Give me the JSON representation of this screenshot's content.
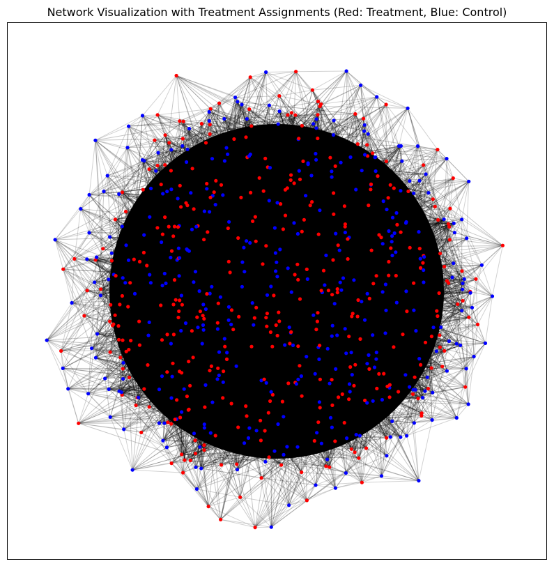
{
  "chart_data": {
    "type": "scatter",
    "subtype": "network-graph",
    "title": "Network Visualization with Treatment Assignments (Red: Treatment, Blue: Control)",
    "xlabel": "",
    "ylabel": "",
    "axes_ticks": false,
    "grid": false,
    "legend": "none",
    "colors": {
      "treatment": "#ff0000",
      "control": "#0000ff",
      "edge": "#000000",
      "frame": "#000000"
    },
    "groups": {
      "treatment_share": 0.5,
      "control_share": 0.5
    }
  }
}
